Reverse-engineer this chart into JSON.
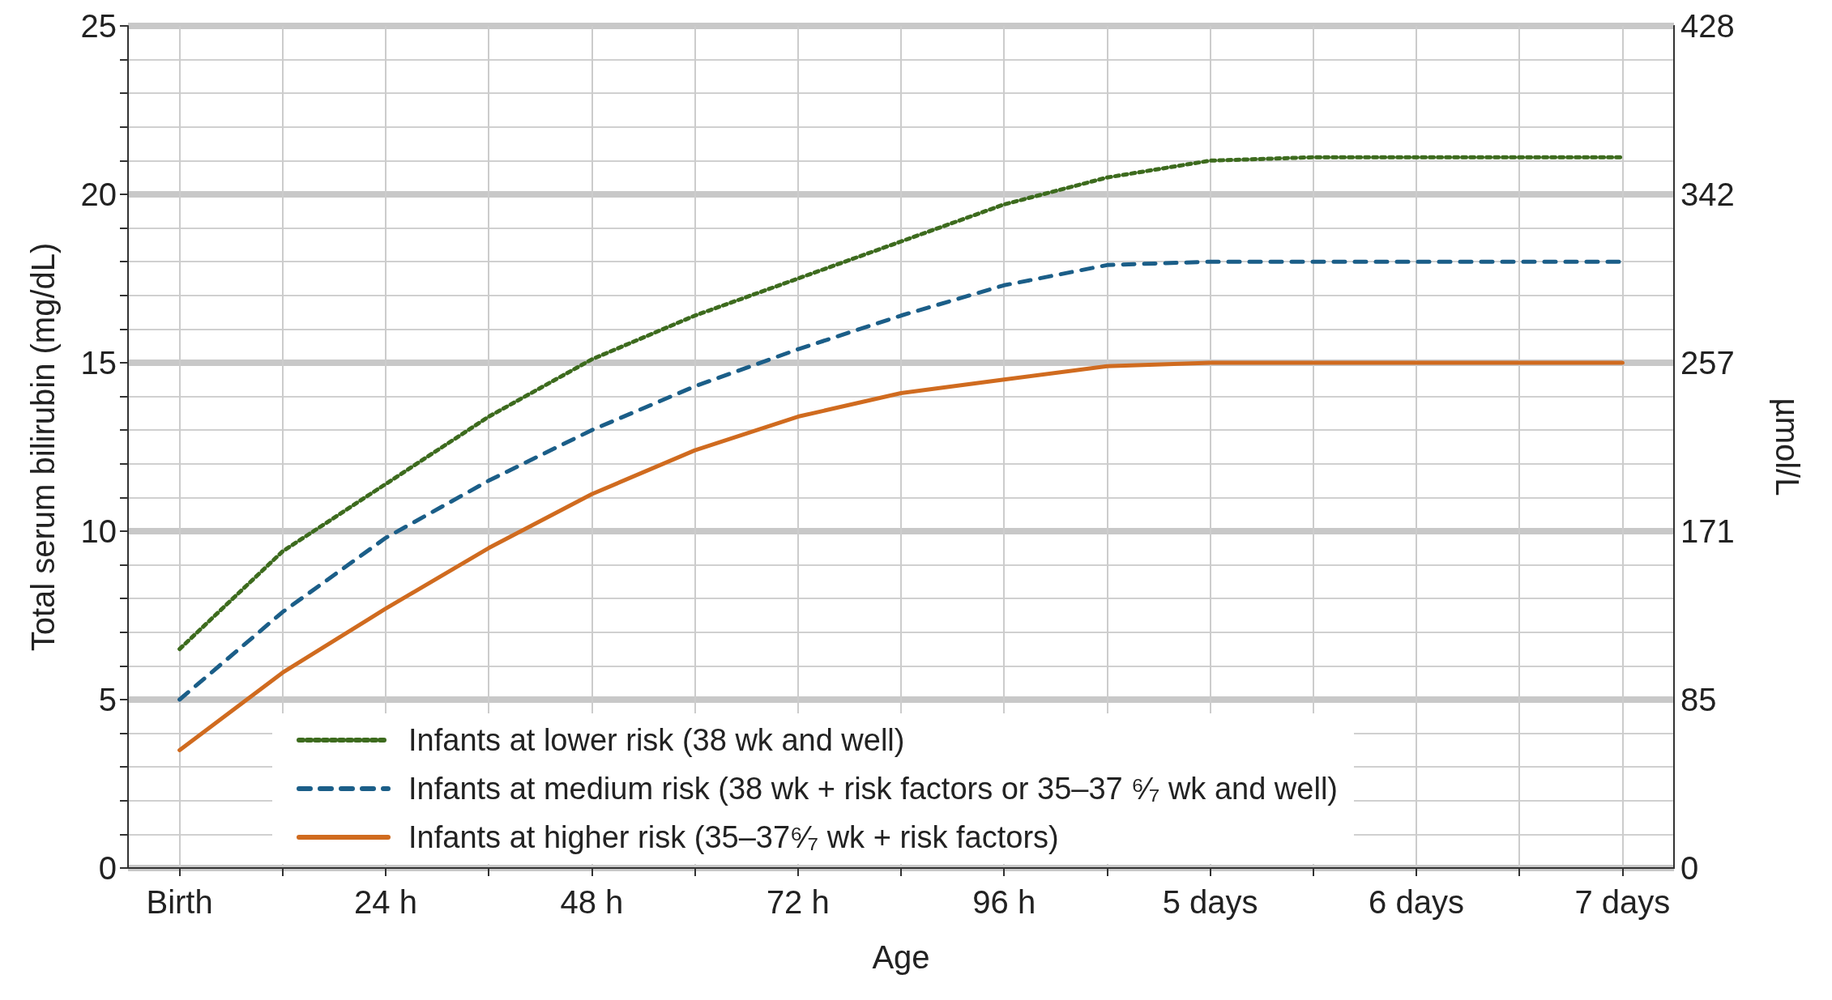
{
  "chart_data": {
    "type": "line",
    "xlabel": "Age",
    "ylabel": "Total serum bilirubin (mg/dL)",
    "y2label": "µmol/L",
    "categories": [
      "Birth",
      null,
      "24 h",
      null,
      "48 h",
      null,
      "72 h",
      null,
      "96 h",
      null,
      "5 days",
      null,
      "6 days",
      null,
      "7 days"
    ],
    "series": [
      {
        "name": "Infants at lower risk (38 wk and well)",
        "color": "#3d6b1e",
        "line_style": "dotted",
        "values": [
          6.5,
          9.4,
          11.4,
          13.4,
          15.1,
          16.4,
          17.5,
          18.6,
          19.7,
          20.5,
          21.0,
          21.1,
          21.1,
          21.1,
          21.1
        ]
      },
      {
        "name": "Infants at medium risk (38 wk + risk factors or 35–37 ⁶⁄₇ wk and well)",
        "color": "#1b5e88",
        "line_style": "dashed",
        "values": [
          5.0,
          7.6,
          9.8,
          11.5,
          13.0,
          14.3,
          15.4,
          16.4,
          17.3,
          17.9,
          18.0,
          18.0,
          18.0,
          18.0,
          18.0
        ]
      },
      {
        "name": "Infants at higher risk (35–37⁶⁄₇ wk + risk factors)",
        "color": "#d06b1f",
        "line_style": "solid",
        "values": [
          3.5,
          5.8,
          7.7,
          9.5,
          11.1,
          12.4,
          13.4,
          14.1,
          14.5,
          14.9,
          15.0,
          15.0,
          15.0,
          15.0,
          15.0
        ]
      }
    ],
    "ylim": [
      0,
      25
    ],
    "yticks": [
      0,
      {
        "value": 1,
        "label": null
      },
      {
        "value": 2,
        "label": null
      },
      {
        "value": 3,
        "label": null
      },
      {
        "value": 4,
        "label": null
      },
      5,
      {
        "value": 6,
        "label": null
      },
      {
        "value": 7,
        "label": null
      },
      {
        "value": 8,
        "label": null
      },
      {
        "value": 9,
        "label": null
      },
      10,
      {
        "value": 11,
        "label": null
      },
      {
        "value": 12,
        "label": null
      },
      {
        "value": 13,
        "label": null
      },
      {
        "value": 14,
        "label": null
      },
      15,
      {
        "value": 16,
        "label": null
      },
      {
        "value": 17,
        "label": null
      },
      {
        "value": 18,
        "label": null
      },
      {
        "value": 19,
        "label": null
      },
      20,
      {
        "value": 21,
        "label": null
      },
      {
        "value": 22,
        "label": null
      },
      {
        "value": 23,
        "label": null
      },
      {
        "value": 24,
        "label": null
      },
      25
    ],
    "y2lim": [
      0,
      427.5
    ],
    "y2ticks": [
      0,
      {
        "value": 85.5,
        "label": "85"
      },
      {
        "value": 171,
        "label": "171"
      },
      {
        "value": 256.5,
        "label": "257"
      },
      {
        "value": 342,
        "label": "342"
      },
      {
        "value": 427.5,
        "label": "428"
      }
    ],
    "grid": true,
    "legend": "bottom left",
    "marker": "none"
  }
}
